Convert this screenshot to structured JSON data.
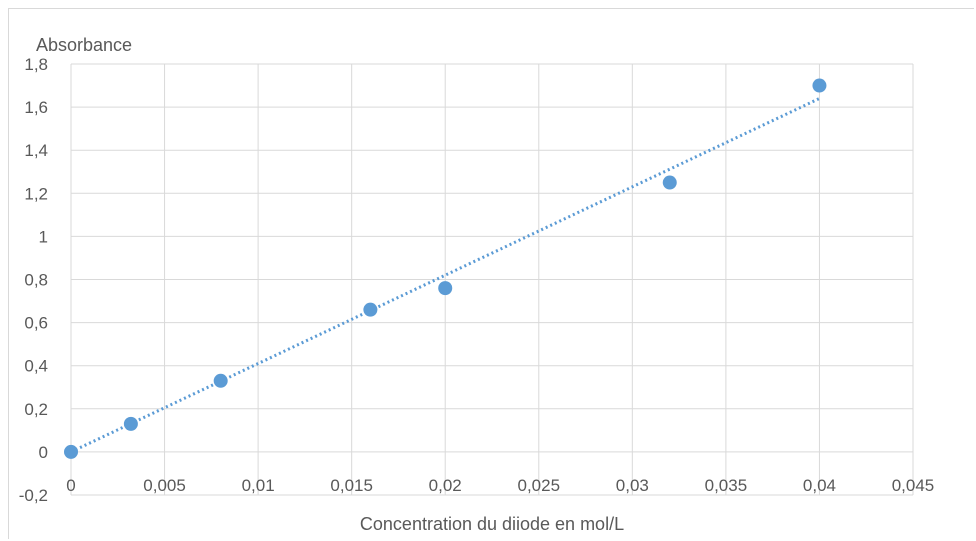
{
  "chart_data": {
    "type": "scatter",
    "title": "",
    "xlabel": "Concentration du diiode en mol/L",
    "ylabel": "Absorbance",
    "xlim": [
      0,
      0.045
    ],
    "ylim": [
      -0.2,
      1.8
    ],
    "x_ticks": [
      "0",
      "0,005",
      "0,01",
      "0,015",
      "0,02",
      "0,025",
      "0,03",
      "0,035",
      "0,04",
      "0,045"
    ],
    "y_ticks": [
      "-0,2",
      "0",
      "0,2",
      "0,4",
      "0,6",
      "0,8",
      "1",
      "1,2",
      "1,4",
      "1,6",
      "1,8"
    ],
    "grid": true,
    "legend": "none",
    "series": [
      {
        "x": [
          0,
          0.0032,
          0.008,
          0.016,
          0.02,
          0.032,
          0.04
        ],
        "y": [
          0,
          0.13,
          0.33,
          0.66,
          0.76,
          1.25,
          1.7
        ],
        "color": "#5b9bd5"
      }
    ],
    "trendline": {
      "type": "linear",
      "style": "dotted",
      "color": "#5b9bd5",
      "x": [
        0,
        0.04
      ],
      "y": [
        0,
        1.64
      ]
    }
  }
}
